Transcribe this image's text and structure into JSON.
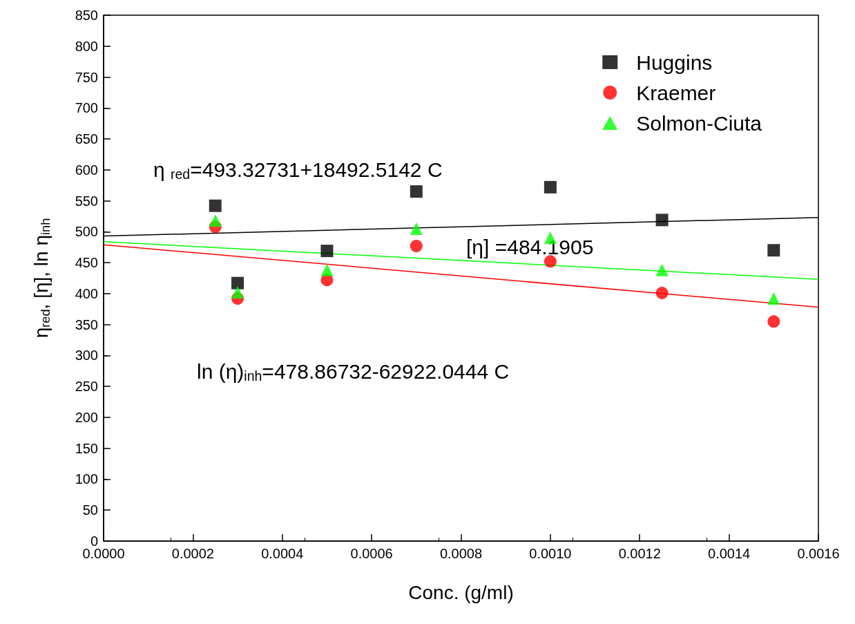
{
  "chart_data": {
    "type": "scatter",
    "xlabel": "Conc. (g/ml)",
    "ylabel": "η$_{red}$, [η], ln η$_{inh}$",
    "xlim": [
      0,
      0.0016
    ],
    "ylim": [
      0,
      850
    ],
    "xticks": [
      {
        "value": 0,
        "label": "0.0000"
      },
      {
        "value": 0.0002,
        "label": "0.0002"
      },
      {
        "value": 0.0004,
        "label": "0.0004"
      },
      {
        "value": 0.0006,
        "label": "0.0006"
      },
      {
        "value": 0.0008,
        "label": "0.0008"
      },
      {
        "value": 0.001,
        "label": "0.0010"
      },
      {
        "value": 0.0012,
        "label": "0.0012"
      },
      {
        "value": 0.0014,
        "label": "0.0014"
      },
      {
        "value": 0.0016,
        "label": "0.0016"
      }
    ],
    "yticks": [
      0,
      50,
      100,
      150,
      200,
      250,
      300,
      350,
      400,
      450,
      500,
      550,
      600,
      650,
      700,
      750,
      800,
      850
    ],
    "legend": "top right",
    "grid": false,
    "series": [
      {
        "name": "Huggins",
        "color": "#000000",
        "marker": "square",
        "x": [
          0.00025,
          0.0003,
          0.0005,
          0.0007,
          0.001,
          0.00125,
          0.0015
        ],
        "values": [
          542,
          417,
          469,
          565,
          572,
          519,
          470
        ]
      },
      {
        "name": "Kraemer",
        "color": "#ff0000",
        "marker": "circle",
        "x": [
          0.00025,
          0.0003,
          0.0005,
          0.0007,
          0.001,
          0.00125,
          0.0015
        ],
        "values": [
          508,
          392,
          422,
          477,
          452,
          401,
          355
        ]
      },
      {
        "name": "Solmon-Ciuta",
        "color": "#00ff00",
        "marker": "triangle",
        "x": [
          0.00025,
          0.0003,
          0.0005,
          0.0007,
          0.001,
          0.00125,
          0.0015
        ],
        "values": [
          518,
          402,
          438,
          505,
          490,
          438,
          392
        ]
      },
      {
        "type": "line",
        "color": "#000000",
        "marker": "none",
        "x": [
          0,
          0.0016
        ],
        "values": [
          493,
          523
        ]
      },
      {
        "type": "line",
        "color": "#ff0000",
        "marker": "none",
        "x": [
          0,
          0.0016
        ],
        "values": [
          479,
          378
        ]
      },
      {
        "type": "line",
        "color": "#00ff00",
        "marker": "none",
        "x": [
          0,
          0.0016
        ],
        "values": [
          484,
          423
        ]
      }
    ],
    "annotations": [
      "η $_{red}$=493.32731+18492.5142 C",
      "[η] =484.1905",
      "ln (η)$_{inh}$=478.86732-62922.0444 C"
    ]
  }
}
